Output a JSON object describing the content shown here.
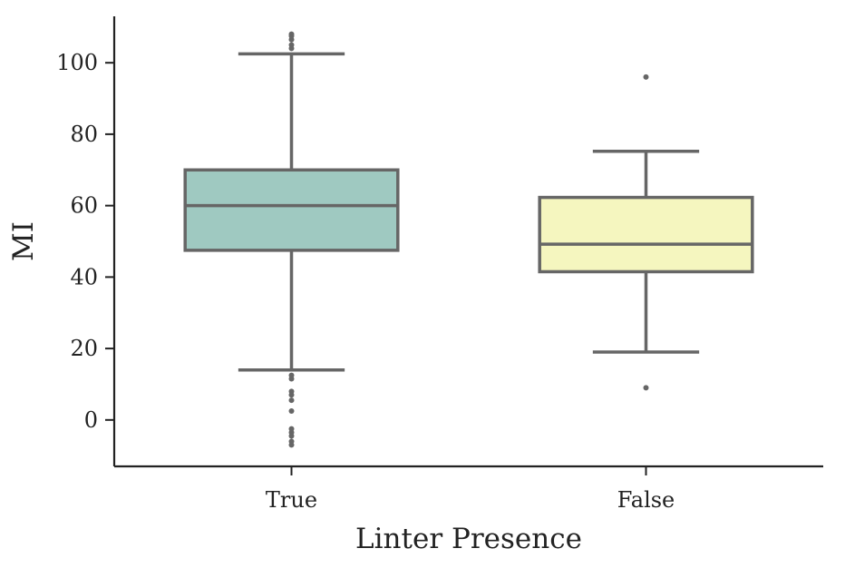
{
  "chart_data": {
    "type": "box",
    "title": "",
    "xlabel": "Linter Presence",
    "ylabel": "MI",
    "ylim": [
      -13,
      113
    ],
    "yticks": [
      0,
      20,
      40,
      60,
      80,
      100
    ],
    "grid": false,
    "categories": [
      "True",
      "False"
    ],
    "series": [
      {
        "category": "True",
        "color": "#9fc9c1",
        "whisker_low": 14,
        "q1": 47.5,
        "median": 60,
        "q3": 70,
        "whisker_high": 102.5,
        "outliers": [
          104,
          105,
          106.5,
          107.5,
          108,
          12.5,
          11.5,
          8,
          7,
          5.5,
          2.5,
          -2.5,
          -3.5,
          -4.5,
          -6,
          -7
        ]
      },
      {
        "category": "False",
        "color": "#f5f6bf",
        "whisker_low": 19,
        "q1": 41.5,
        "median": 49.2,
        "q3": 62.3,
        "whisker_high": 75.2,
        "outliers": [
          96,
          9
        ]
      }
    ]
  }
}
